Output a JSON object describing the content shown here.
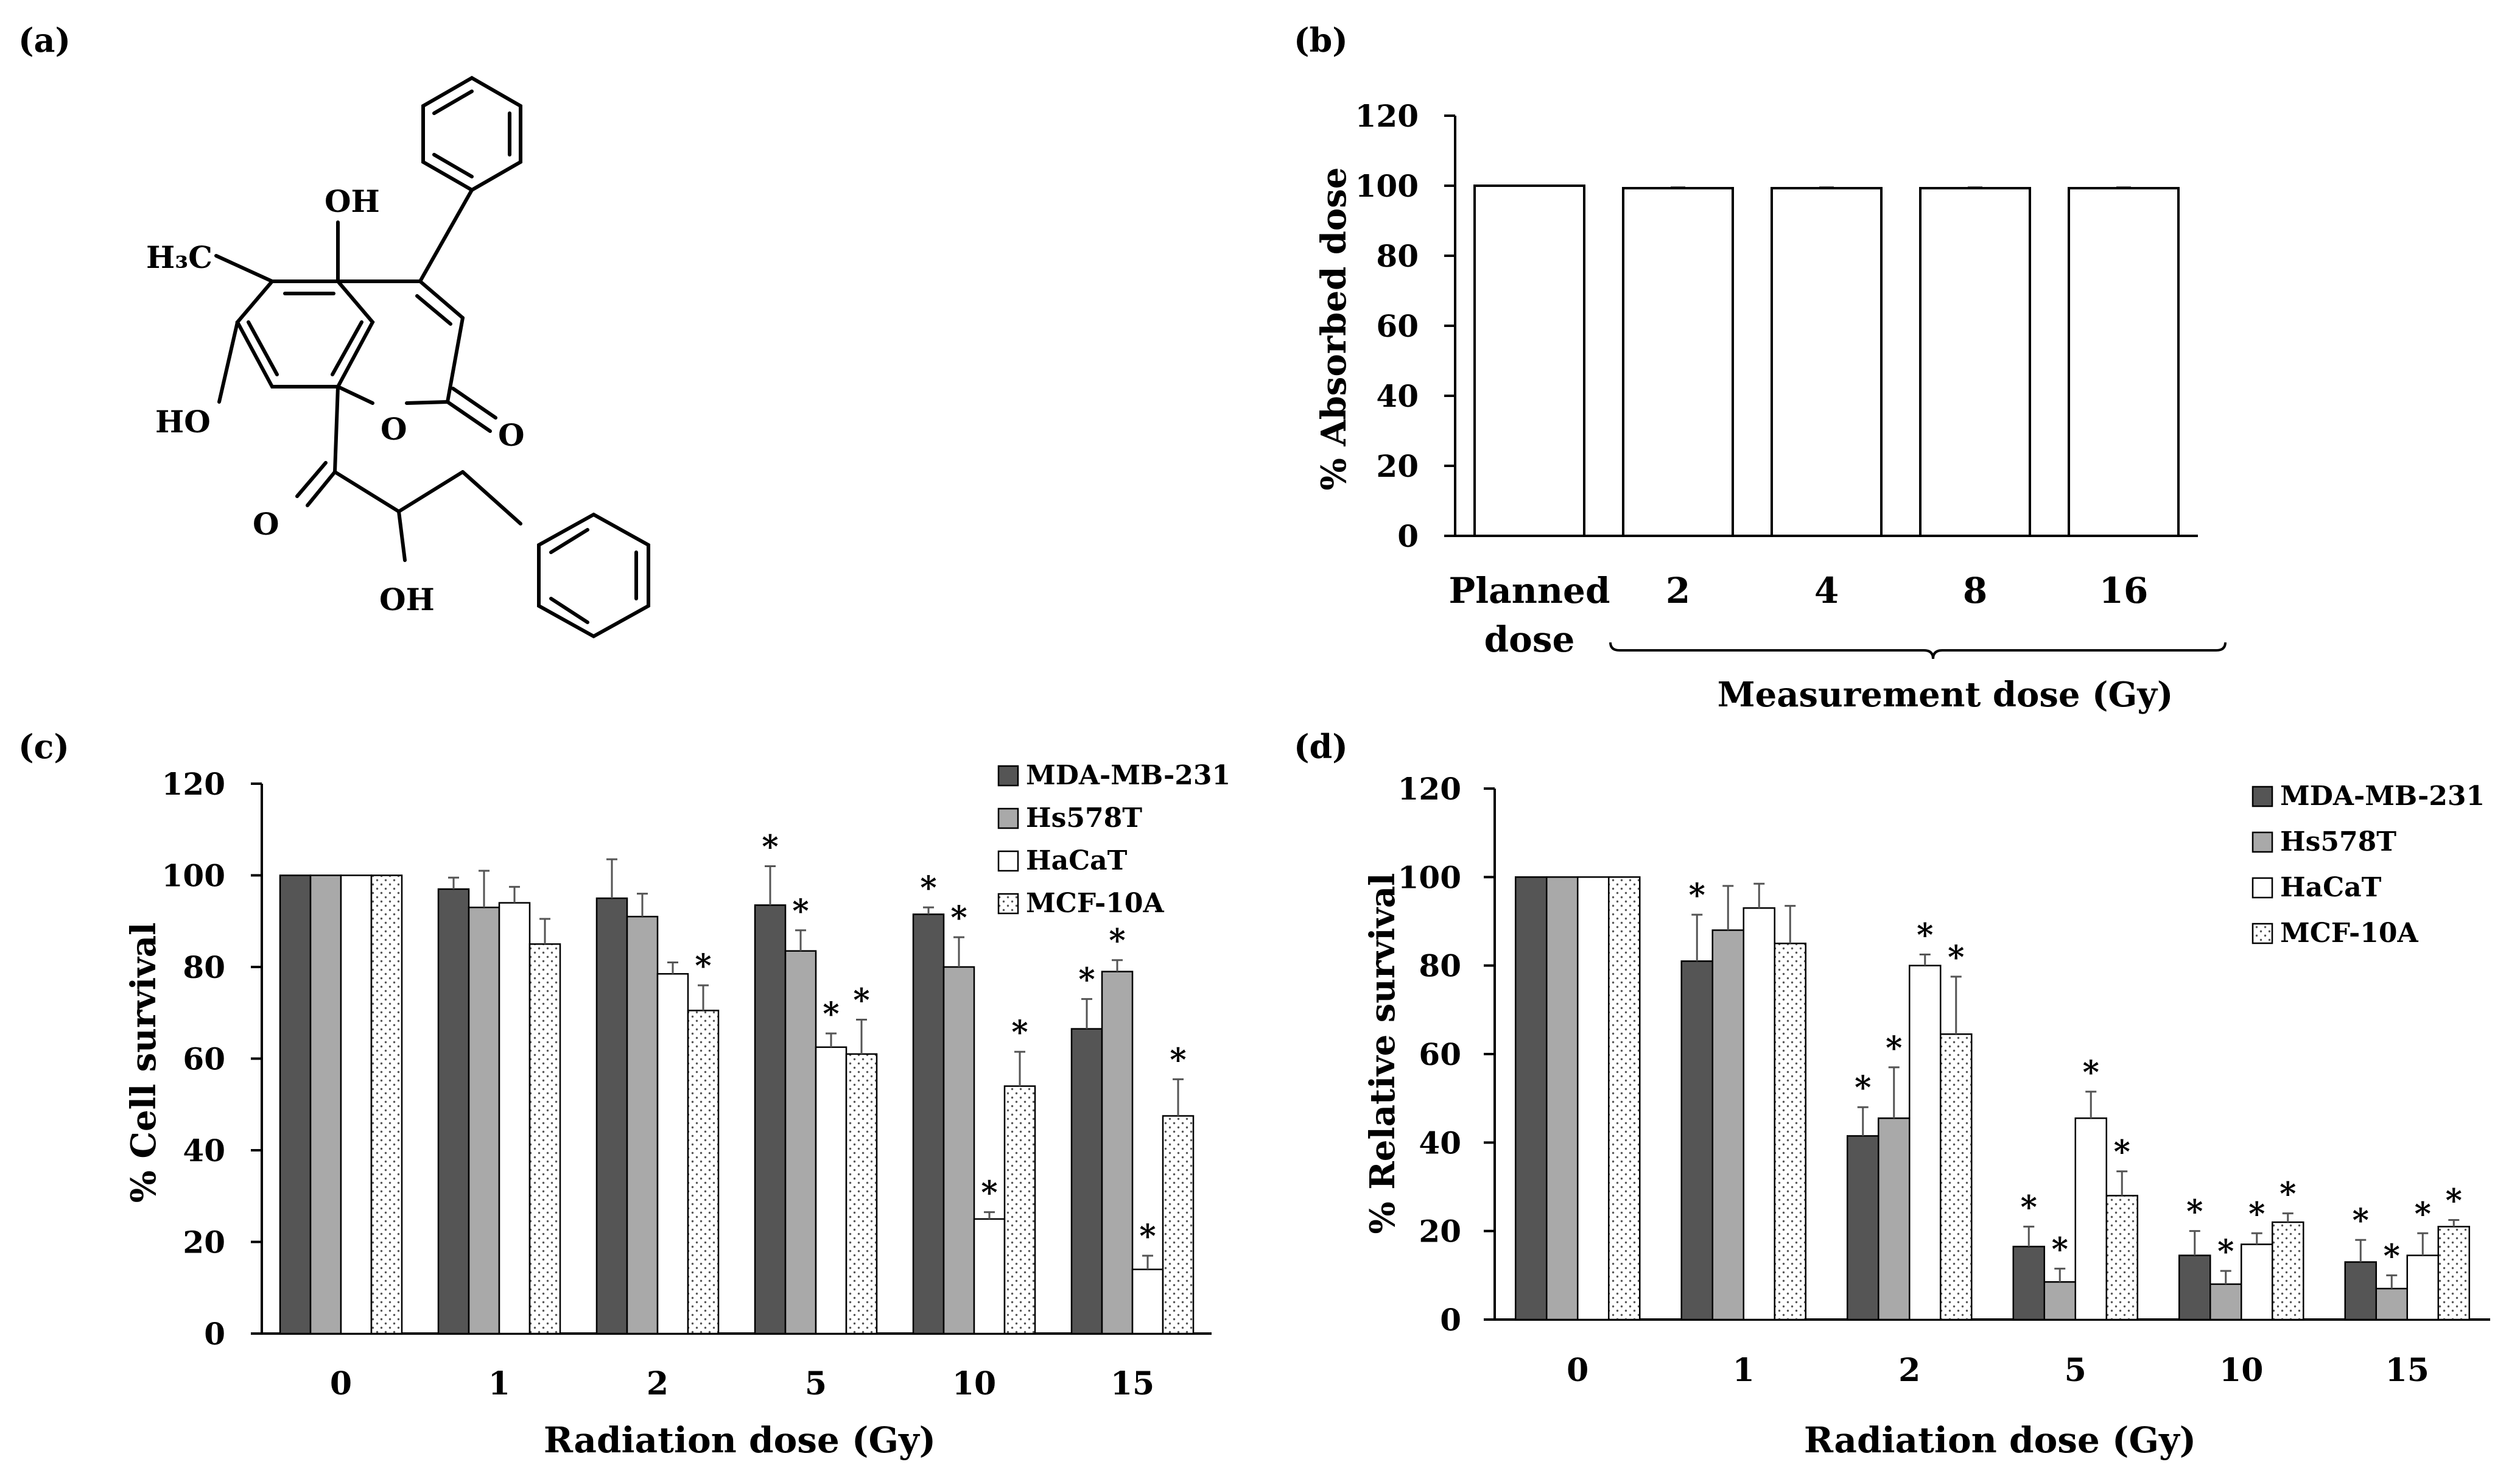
{
  "colors": {
    "dark": "#555555",
    "gray": "#a9a9a9",
    "white": "#ffffff",
    "black": "#000000"
  },
  "structure": {
    "label": "(a)",
    "groups": {
      "oh_top": "OH",
      "h3c": "H₃C",
      "ho": "HO",
      "ring_o": "O",
      "lactone_o": "O",
      "ketone_o": "O",
      "oh_bottom": "OH"
    }
  },
  "chart_data": [
    {
      "id": "b",
      "type": "bar",
      "label": "(b)",
      "ylabel": "% Absorbed dose",
      "ylim": [
        0,
        120
      ],
      "yticks": [
        0,
        20,
        40,
        60,
        80,
        100,
        120
      ],
      "categories": [
        [
          "Planned",
          "dose"
        ],
        [
          "2"
        ],
        [
          "4"
        ],
        [
          "8"
        ],
        [
          "16"
        ]
      ],
      "values": [
        100,
        99.3,
        99.3,
        99.3,
        99.3
      ],
      "errors": [
        0,
        0.2,
        0.2,
        0.2,
        0.2
      ],
      "bracket_label": "Measurement dose (Gy)"
    },
    {
      "id": "c",
      "type": "bar",
      "label": "(c)",
      "xlabel": "Radiation dose (Gy)",
      "ylabel": "% Cell survival",
      "ylim": [
        0,
        120
      ],
      "yticks": [
        0,
        20,
        40,
        60,
        80,
        100,
        120
      ],
      "categories": [
        "0",
        "1",
        "2",
        "5",
        "10",
        "15"
      ],
      "legend_position": "top-right",
      "series": [
        {
          "name": "MDA-MB-231",
          "style": "dark",
          "values": [
            100,
            97,
            95,
            93.5,
            91.5,
            66.5
          ],
          "errors": [
            0,
            2.5,
            8.5,
            8.5,
            1.5,
            6.5
          ],
          "sig": [
            false,
            false,
            false,
            true,
            true,
            true
          ]
        },
        {
          "name": "Hs578T",
          "style": "gray",
          "values": [
            100,
            93,
            91,
            83.5,
            80,
            79
          ],
          "errors": [
            0,
            8,
            5,
            4.5,
            6.5,
            2.5
          ],
          "sig": [
            false,
            false,
            false,
            true,
            true,
            true
          ]
        },
        {
          "name": "HaCaT",
          "style": "white",
          "values": [
            100,
            94,
            78.5,
            62.5,
            25,
            14
          ],
          "errors": [
            0,
            3.5,
            2.5,
            3,
            1.5,
            3
          ],
          "sig": [
            false,
            false,
            false,
            true,
            true,
            true
          ]
        },
        {
          "name": "MCF-10A",
          "style": "dotted",
          "values": [
            100,
            85,
            70.5,
            61,
            54,
            47.5
          ],
          "errors": [
            0,
            5.5,
            5.5,
            7.5,
            7.5,
            8
          ],
          "sig": [
            false,
            false,
            true,
            true,
            true,
            true
          ]
        }
      ],
      "sig_mark": "*"
    },
    {
      "id": "d",
      "type": "bar",
      "label": "(d)",
      "xlabel": "Radiation dose (Gy)",
      "ylabel": "% Relative survival",
      "ylim": [
        0,
        120
      ],
      "yticks": [
        0,
        20,
        40,
        60,
        80,
        100,
        120
      ],
      "categories": [
        "0",
        "1",
        "2",
        "5",
        "10",
        "15"
      ],
      "legend_position": "top-right",
      "series": [
        {
          "name": "MDA-MB-231",
          "style": "dark",
          "values": [
            100,
            81,
            41.5,
            16.5,
            14.5,
            13
          ],
          "errors": [
            0,
            10.5,
            6.5,
            4.5,
            5.5,
            5
          ],
          "sig": [
            false,
            true,
            true,
            true,
            true,
            true
          ]
        },
        {
          "name": "Hs578T",
          "style": "gray",
          "values": [
            100,
            88,
            45.5,
            8.5,
            8,
            7
          ],
          "errors": [
            0,
            10,
            11.5,
            3,
            3,
            3
          ],
          "sig": [
            false,
            false,
            true,
            true,
            true,
            true
          ]
        },
        {
          "name": "HaCaT",
          "style": "white",
          "values": [
            100,
            93,
            80,
            45.5,
            17,
            14.5
          ],
          "errors": [
            0,
            5.5,
            2.5,
            6,
            2.5,
            5
          ],
          "sig": [
            false,
            false,
            true,
            true,
            true,
            true
          ]
        },
        {
          "name": "MCF-10A",
          "style": "dotted",
          "values": [
            100,
            85,
            64.5,
            28,
            22,
            21
          ],
          "errors": [
            0,
            8.5,
            13,
            5.5,
            2,
            1.5
          ],
          "sig": [
            false,
            false,
            true,
            true,
            true,
            true
          ]
        }
      ],
      "sig_mark": "*"
    }
  ]
}
